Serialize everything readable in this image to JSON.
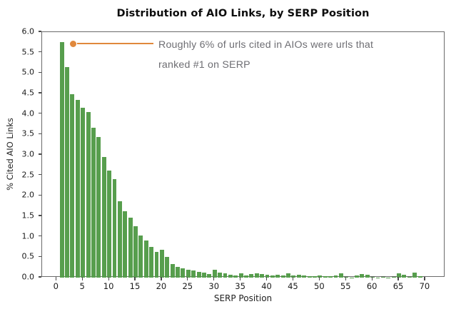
{
  "figure": {
    "title": "Distribution of AIO Links, by SERP Position"
  },
  "chart_data": {
    "type": "bar",
    "title": "Distribution of AIO Links, by SERP Position",
    "xlabel": "SERP Position",
    "ylabel": "% Cited AIO Links",
    "xlim": [
      -2.75,
      73.8
    ],
    "ylim": [
      0,
      6.0
    ],
    "xticks": [
      0,
      5,
      10,
      15,
      20,
      25,
      30,
      35,
      40,
      45,
      50,
      55,
      60,
      65,
      70
    ],
    "yticks": [
      0.0,
      0.5,
      1.0,
      1.5,
      2.0,
      2.5,
      3.0,
      3.5,
      4.0,
      4.5,
      5.0,
      5.5,
      6.0
    ],
    "grid": false,
    "legend": null,
    "bar_color": "#579e4d",
    "bar_width": 0.8,
    "x": [
      1,
      2,
      3,
      4,
      5,
      6,
      7,
      8,
      9,
      10,
      11,
      12,
      13,
      14,
      15,
      16,
      17,
      18,
      19,
      20,
      21,
      22,
      23,
      24,
      25,
      26,
      27,
      28,
      29,
      30,
      31,
      32,
      33,
      34,
      35,
      36,
      37,
      38,
      39,
      40,
      41,
      42,
      43,
      44,
      45,
      46,
      47,
      48,
      49,
      50,
      51,
      52,
      53,
      54,
      55,
      56,
      57,
      58,
      59,
      60,
      61,
      62,
      63,
      64,
      65,
      66,
      67,
      68,
      69
    ],
    "values": [
      5.75,
      5.15,
      4.48,
      4.35,
      4.15,
      4.05,
      3.67,
      3.44,
      2.94,
      2.62,
      2.41,
      1.86,
      1.62,
      1.47,
      1.26,
      1.03,
      0.91,
      0.75,
      0.62,
      0.68,
      0.5,
      0.33,
      0.27,
      0.23,
      0.19,
      0.17,
      0.14,
      0.12,
      0.08,
      0.19,
      0.12,
      0.1,
      0.075,
      0.05,
      0.1,
      0.06,
      0.09,
      0.1,
      0.09,
      0.07,
      0.06,
      0.07,
      0.05,
      0.11,
      0.06,
      0.07,
      0.05,
      0.03,
      0.04,
      0.05,
      0.03,
      0.04,
      0.05,
      0.1,
      0.025,
      0.005,
      0.06,
      0.09,
      0.07,
      0.02,
      0.005,
      0.015,
      0.005,
      0.02,
      0.1,
      0.07,
      0.01,
      0.12,
      0.035
    ],
    "annotation": {
      "line1": "Roughly 6% of urls cited in AIOs were urls that",
      "line2": "ranked #1 on SERP",
      "point_x": 3.3,
      "point_y": 5.7,
      "line_end_x": 18.5,
      "color": "#e0883c"
    }
  }
}
